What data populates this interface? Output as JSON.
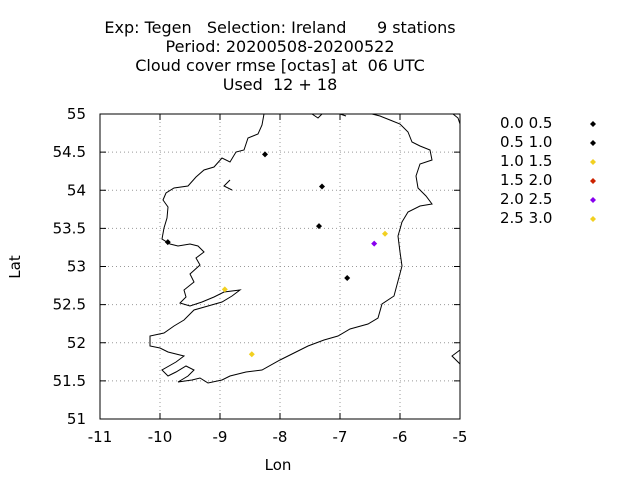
{
  "header": {
    "line1": "Exp: Tegen   Selection: Ireland      9 stations",
    "line2": "Period: 20200508-20200522",
    "line3": "Cloud cover rmse [octas] at  06 UTC",
    "line4": "Used  12 + 18"
  },
  "chart_data": {
    "type": "scatter",
    "title": "Exp: Tegen   Selection: Ireland      9 stations",
    "xlabel": "Lon",
    "ylabel": "Lat",
    "xlim": [
      -11,
      -5
    ],
    "ylim": [
      51,
      55
    ],
    "xticks": [
      "-11",
      "-10",
      "-9",
      "-8",
      "-7",
      "-6",
      "-5"
    ],
    "yticks": [
      "51",
      "51.5",
      "52",
      "52.5",
      "53",
      "53.5",
      "54",
      "54.5",
      "55"
    ],
    "grid": true,
    "legend_position": "right",
    "series": [
      {
        "name": "0.0 0.5",
        "color": "#000000",
        "points": [
          [
            -8.25,
            54.47
          ],
          [
            -7.3,
            54.05
          ],
          [
            -9.87,
            53.32
          ],
          [
            -7.35,
            53.53
          ],
          [
            -6.88,
            52.85
          ]
        ]
      },
      {
        "name": "0.5 1.0",
        "color": "#000000",
        "points": []
      },
      {
        "name": "1.0 1.5",
        "color": "#f2d020",
        "points": [
          [
            -6.25,
            53.43
          ],
          [
            -8.92,
            52.7
          ],
          [
            -8.47,
            51.85
          ]
        ]
      },
      {
        "name": "1.5 2.0",
        "color": "#cc2200",
        "points": []
      },
      {
        "name": "2.0 2.5",
        "color": "#8800ee",
        "points": [
          [
            -6.43,
            53.3
          ]
        ]
      },
      {
        "name": "2.5 3.0",
        "color": "#f2d020",
        "points": []
      }
    ]
  }
}
